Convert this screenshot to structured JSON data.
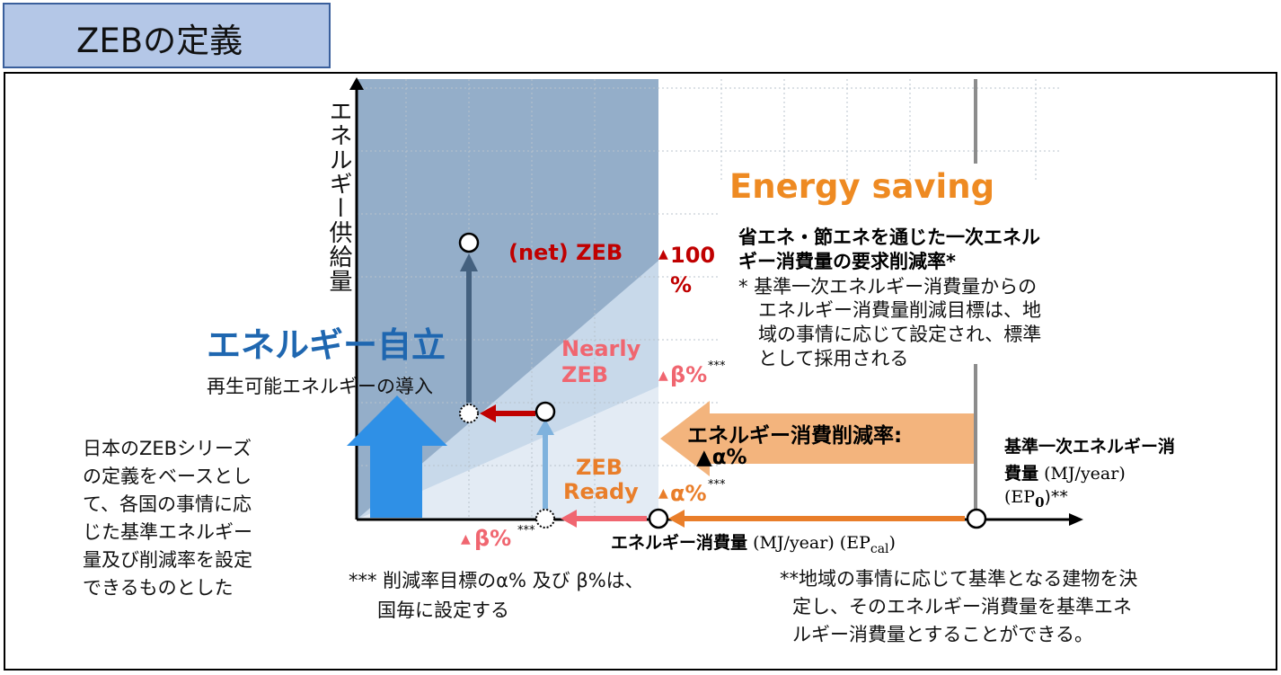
{
  "page": {
    "title": "ZEBの定義"
  },
  "diagram": {
    "y_axis_label": "エネルギー供給量",
    "x_axis_label_main": "エネルギー消費量",
    "x_axis_label_unit": "(MJ/year) (EP",
    "x_axis_label_sub": "cal",
    "x_axis_label_close": ")",
    "energy_saving": "Energy saving",
    "saving_heading_line1": "省エネ・節エネを通じた一次エネル",
    "saving_heading_line2": "ギー消費量の要求削減率*",
    "saving_note_line1": "* 基準一次エネルギー消費量からの",
    "saving_note_line2": "エネルギー消費量削減目標は、地",
    "saving_note_line3": "域の事情に応じて設定され、標準",
    "saving_note_line4": "として採用される",
    "net_zeb": "(net) ZEB",
    "pct_100_line1": "100",
    "pct_100_line2": "%",
    "nearly_zeb_line1": "Nearly",
    "nearly_zeb_line2": "ZEB",
    "beta_pct": "β%",
    "stars": "***",
    "zeb_ready_line1": "ZEB",
    "zeb_ready_line2": "Ready",
    "alpha_pct": "α%",
    "triangle": "▲",
    "reduction_rate_label": "エネルギー消費削減率:",
    "reduction_rate_alpha": "▲α%",
    "energy_independence": "エネルギー自立",
    "renewable_intro": "再生可能エネルギーの導入",
    "baseline_line1": "基準一次エネルギー消",
    "baseline_line2": "費量",
    "baseline_unit": "(MJ/year)",
    "baseline_ep": "(EP",
    "baseline_sub": "0",
    "baseline_close": ")**",
    "left_note": [
      "日本のZEBシリーズ",
      "の定義をベースとし",
      "て、各国の事情に応",
      "じた基準エネルギー",
      "量及び削減率を設定",
      "できるものとした"
    ],
    "bottom_note_1": [
      "*** 削減率目標のα% 及び β%は、",
      "国毎に設定する"
    ],
    "bottom_note_2": [
      "**地域の事情に応じて基準となる建物を決",
      "定し、そのエネルギー消費量を基準エネ",
      "ルギー消費量とすることができる。"
    ],
    "colors": {
      "title_bg": "#b4c7e7",
      "net_zeb_red": "#c00000",
      "nearly_zeb_pink": "#f06670",
      "zeb_ready_orange": "#e97e2a",
      "energy_saving_orange": "#ee8a22",
      "independence_blue": "#1f67b0",
      "reduction_arrow": "#f3b47d"
    }
  }
}
